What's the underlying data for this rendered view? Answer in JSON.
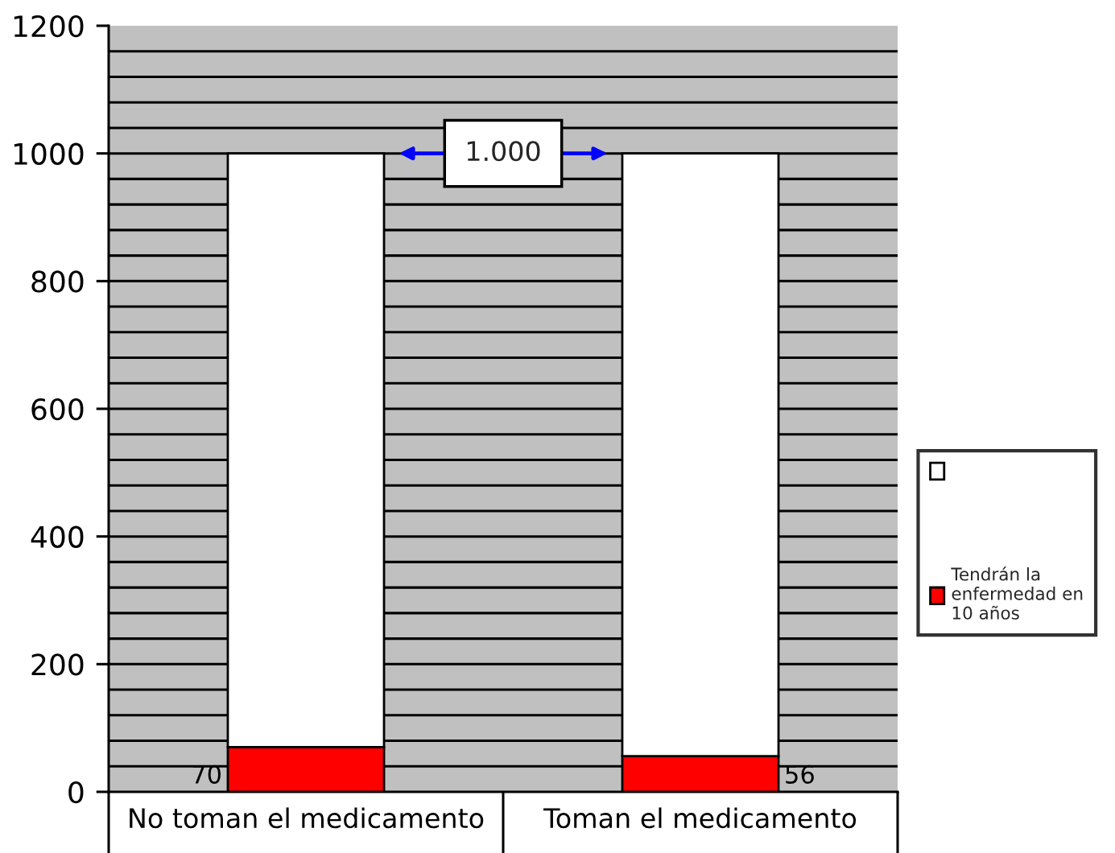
{
  "chart_data": {
    "type": "bar",
    "stacked": true,
    "categories": [
      "No toman el medicamento",
      "Toman el medicamento"
    ],
    "series": [
      {
        "name": "Tendrán la enfermedad en 10 años",
        "color": "#ff0000",
        "values": [
          70,
          56
        ],
        "value_labels": [
          "70",
          "56"
        ]
      },
      {
        "color": "#ffffff",
        "values": [
          930,
          944
        ]
      }
    ],
    "ylim": [
      0,
      1200
    ],
    "yticks": [
      0,
      {
        "value": 40,
        "label": null
      },
      {
        "value": 80,
        "label": null
      },
      {
        "value": 120,
        "label": null
      },
      {
        "value": 160,
        "label": null
      },
      200,
      {
        "value": 240,
        "label": null
      },
      {
        "value": 280,
        "label": null
      },
      {
        "value": 320,
        "label": null
      },
      {
        "value": 360,
        "label": null
      },
      400,
      {
        "value": 440,
        "label": null
      },
      {
        "value": 480,
        "label": null
      },
      {
        "value": 520,
        "label": null
      },
      {
        "value": 560,
        "label": null
      },
      600,
      {
        "value": 640,
        "label": null
      },
      {
        "value": 680,
        "label": null
      },
      {
        "value": 720,
        "label": null
      },
      {
        "value": 760,
        "label": null
      },
      800,
      {
        "value": 840,
        "label": null
      },
      {
        "value": 880,
        "label": null
      },
      {
        "value": 920,
        "label": null
      },
      {
        "value": 960,
        "label": null
      },
      1000,
      {
        "value": 1040,
        "label": null
      },
      {
        "value": 1080,
        "label": null
      },
      {
        "value": 1120,
        "label": null
      },
      {
        "value": 1160,
        "label": null
      },
      1200
    ],
    "grid": "y",
    "legend": "right",
    "annotations": [
      "1.000"
    ]
  }
}
